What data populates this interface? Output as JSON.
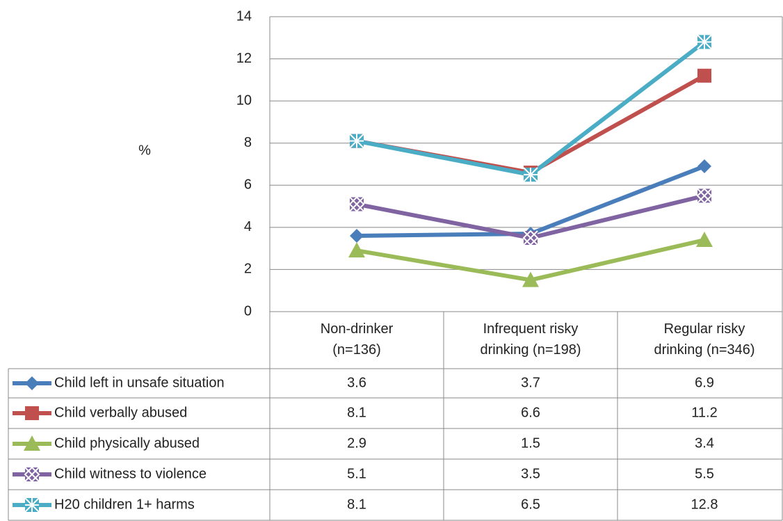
{
  "chart_data": {
    "type": "line",
    "y_label": "%",
    "categories": [
      "Non-drinker (n=136)",
      "Infrequent risky drinking (n=198)",
      "Regular risky drinking (n=346)"
    ],
    "series": [
      {
        "name": "Child left in unsafe situation",
        "color": "#4a7ebb",
        "marker": "diamond",
        "values": [
          3.6,
          3.7,
          6.9
        ]
      },
      {
        "name": "Child verbally abused",
        "color": "#c0504d",
        "marker": "square",
        "values": [
          8.1,
          6.6,
          11.2
        ]
      },
      {
        "name": "Child physically  abused",
        "color": "#9bbb59",
        "marker": "triangle",
        "values": [
          2.9,
          1.5,
          3.4
        ]
      },
      {
        "name": "Child witness to violence",
        "color": "#8064a2",
        "marker": "cross-square",
        "values": [
          5.1,
          3.5,
          5.5
        ]
      },
      {
        "name": "H20 children 1+ harms",
        "color": "#4bacc6",
        "marker": "star",
        "values": [
          8.1,
          6.5,
          12.8
        ]
      }
    ],
    "ylim": [
      0,
      14
    ],
    "yticks": [
      0,
      2,
      4,
      6,
      8,
      10,
      12,
      14
    ],
    "grid": true
  }
}
